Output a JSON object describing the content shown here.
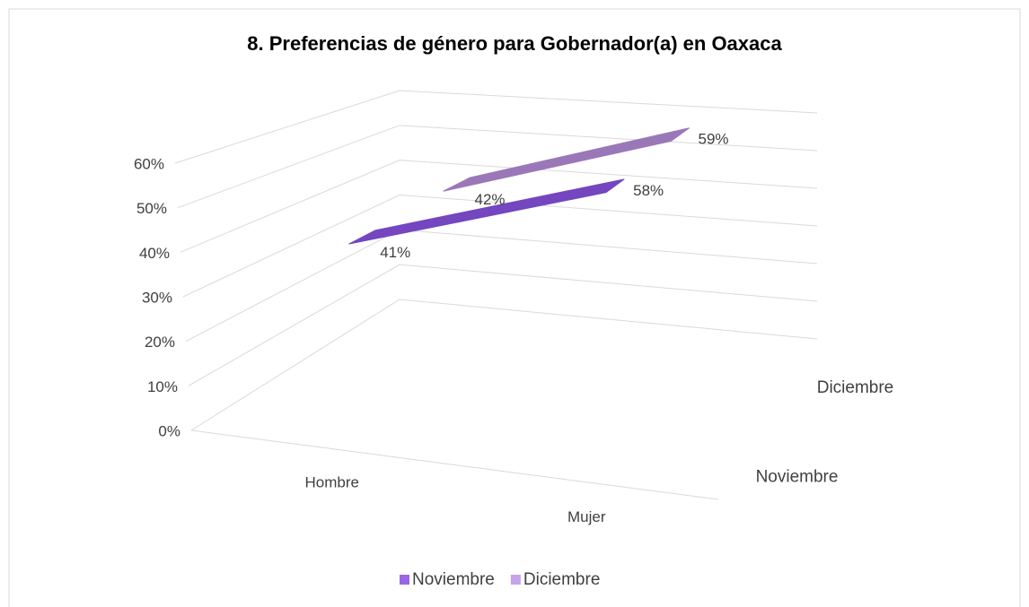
{
  "chart_data": {
    "type": "line3d",
    "title": "8. Preferencias de género para Gobernador(a) en Oaxaca",
    "categories": [
      "Hombre",
      "Mujer"
    ],
    "series": [
      {
        "name": "Noviembre",
        "color": "#7446c0",
        "values": [
          41,
          58
        ],
        "value_labels": [
          "41%",
          "58%"
        ]
      },
      {
        "name": "Diciembre",
        "color": "#9a78b8",
        "values": [
          42,
          59
        ],
        "value_labels": [
          "42%",
          "59%"
        ]
      }
    ],
    "ylim": [
      0,
      60
    ],
    "yticks": [
      {
        "value": 0,
        "label": "0%"
      },
      {
        "value": 10,
        "label": "10%"
      },
      {
        "value": 20,
        "label": "20%"
      },
      {
        "value": 30,
        "label": "30%"
      },
      {
        "value": 40,
        "label": "40%"
      },
      {
        "value": 50,
        "label": "50%"
      },
      {
        "value": 60,
        "label": "60%"
      }
    ],
    "grid": true,
    "legend": "bottom"
  }
}
